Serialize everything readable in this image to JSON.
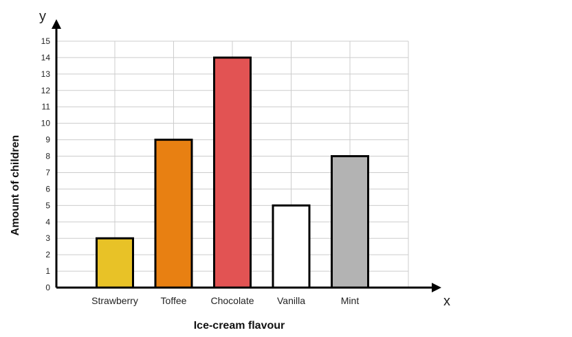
{
  "chart_data": {
    "type": "bar",
    "categories": [
      "Strawberry",
      "Toffee",
      "Chocolate",
      "Vanilla",
      "Mint"
    ],
    "values": [
      3,
      9,
      14,
      5,
      8
    ],
    "bar_colors": [
      "#E8C227",
      "#E88012",
      "#E25353",
      "#FFFFFF",
      "#B3B3B3"
    ],
    "xlabel": "Ice-cream flavour",
    "ylabel": "Amount of children",
    "x_axis_letter": "x",
    "y_axis_letter": "y",
    "ylim": [
      0,
      15
    ],
    "yticks": [
      0,
      1,
      2,
      3,
      4,
      5,
      6,
      7,
      8,
      9,
      10,
      11,
      12,
      13,
      14,
      15
    ],
    "grid": true
  }
}
